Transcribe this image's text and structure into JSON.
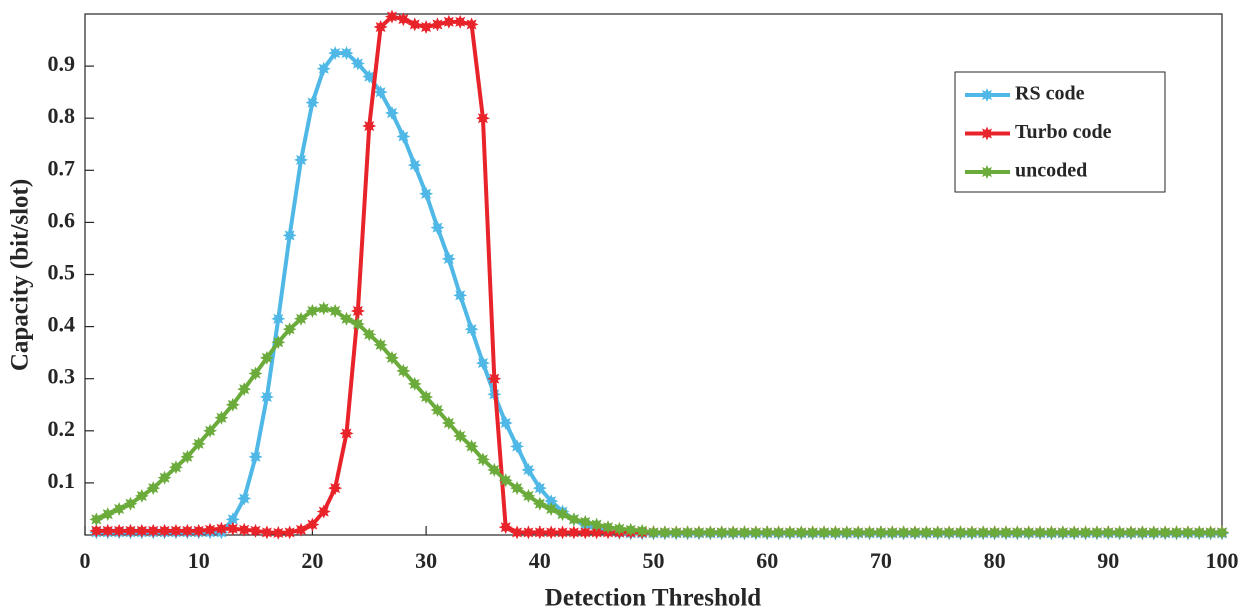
{
  "chart_data": {
    "type": "line",
    "x_label": "Detection Threshold",
    "y_label": "Capacity (bit/slot)",
    "xlim": [
      0,
      100
    ],
    "ylim": [
      0,
      1
    ],
    "xticks": [
      0,
      10,
      20,
      30,
      40,
      50,
      60,
      70,
      80,
      90,
      100
    ],
    "yticks": [
      0.1,
      0.2,
      0.3,
      0.4,
      0.5,
      0.6,
      0.7,
      0.8,
      0.9
    ],
    "grid": false,
    "legend": "upper right",
    "x": [
      1,
      2,
      3,
      4,
      5,
      6,
      7,
      8,
      9,
      10,
      11,
      12,
      13,
      14,
      15,
      16,
      17,
      18,
      19,
      20,
      21,
      22,
      23,
      24,
      25,
      26,
      27,
      28,
      29,
      30,
      31,
      32,
      33,
      34,
      35,
      36,
      37,
      38,
      39,
      40,
      41,
      42,
      43,
      44,
      45,
      46,
      47,
      48,
      49,
      50,
      51,
      52,
      53,
      54,
      55,
      56,
      57,
      58,
      59,
      60,
      61,
      62,
      63,
      64,
      65,
      66,
      67,
      68,
      69,
      70,
      71,
      72,
      73,
      74,
      75,
      76,
      77,
      78,
      79,
      80,
      81,
      82,
      83,
      84,
      85,
      86,
      87,
      88,
      89,
      90,
      91,
      92,
      93,
      94,
      95,
      96,
      97,
      98,
      99,
      100
    ],
    "series": [
      {
        "name": "RS code",
        "color": "#4fb8e6",
        "values": [
          0.005,
          0.005,
          0.005,
          0.005,
          0.005,
          0.005,
          0.005,
          0.005,
          0.005,
          0.005,
          0.005,
          0.005,
          0.03,
          0.07,
          0.15,
          0.265,
          0.415,
          0.575,
          0.72,
          0.83,
          0.895,
          0.925,
          0.925,
          0.905,
          0.88,
          0.85,
          0.81,
          0.765,
          0.71,
          0.655,
          0.59,
          0.53,
          0.46,
          0.395,
          0.33,
          0.27,
          0.215,
          0.17,
          0.125,
          0.09,
          0.065,
          0.045,
          0.03,
          0.02,
          0.012,
          0.007,
          0.004,
          0.003,
          0.003,
          0.003,
          0.003,
          0.003,
          0.003,
          0.003,
          0.003,
          0.003,
          0.003,
          0.003,
          0.003,
          0.003,
          0.003,
          0.003,
          0.003,
          0.003,
          0.003,
          0.003,
          0.003,
          0.003,
          0.003,
          0.003,
          0.003,
          0.003,
          0.003,
          0.003,
          0.003,
          0.003,
          0.003,
          0.003,
          0.003,
          0.003,
          0.003,
          0.003,
          0.003,
          0.003,
          0.003,
          0.003,
          0.003,
          0.003,
          0.003,
          0.003,
          0.003,
          0.003,
          0.003,
          0.003,
          0.003,
          0.003,
          0.003,
          0.003,
          0.003,
          0.003
        ]
      },
      {
        "name": "Turbo code",
        "color": "#e8232a",
        "values": [
          0.008,
          0.008,
          0.008,
          0.008,
          0.008,
          0.008,
          0.008,
          0.008,
          0.008,
          0.008,
          0.01,
          0.012,
          0.012,
          0.01,
          0.008,
          0.005,
          0.004,
          0.005,
          0.01,
          0.02,
          0.045,
          0.09,
          0.195,
          0.43,
          0.785,
          0.975,
          0.995,
          0.99,
          0.98,
          0.975,
          0.98,
          0.985,
          0.985,
          0.98,
          0.8,
          0.3,
          0.015,
          0.005,
          0.005,
          0.005,
          0.005,
          0.005,
          0.005,
          0.005,
          0.005,
          0.005,
          0.005,
          0.005,
          0.005,
          0.005,
          0.005,
          0.005,
          0.005,
          0.005,
          0.005,
          0.005,
          0.005,
          0.005,
          0.005,
          0.005,
          0.005,
          0.005,
          0.005,
          0.005,
          0.005,
          0.005,
          0.005,
          0.005,
          0.005,
          0.005,
          0.005,
          0.005,
          0.005,
          0.005,
          0.005,
          0.005,
          0.005,
          0.005,
          0.005,
          0.005,
          0.005,
          0.005,
          0.005,
          0.005,
          0.005,
          0.005,
          0.005,
          0.005,
          0.005,
          0.005,
          0.005,
          0.005,
          0.005,
          0.005,
          0.005,
          0.005,
          0.005,
          0.005,
          0.005,
          0.005
        ]
      },
      {
        "name": "uncoded",
        "color": "#6aab3b",
        "values": [
          0.03,
          0.04,
          0.05,
          0.06,
          0.075,
          0.09,
          0.11,
          0.13,
          0.15,
          0.175,
          0.2,
          0.225,
          0.25,
          0.28,
          0.31,
          0.34,
          0.37,
          0.395,
          0.415,
          0.43,
          0.435,
          0.43,
          0.415,
          0.405,
          0.385,
          0.365,
          0.34,
          0.315,
          0.29,
          0.265,
          0.24,
          0.215,
          0.19,
          0.17,
          0.145,
          0.125,
          0.105,
          0.09,
          0.075,
          0.06,
          0.05,
          0.04,
          0.03,
          0.025,
          0.02,
          0.015,
          0.012,
          0.01,
          0.008,
          0.005,
          0.005,
          0.005,
          0.005,
          0.005,
          0.005,
          0.005,
          0.005,
          0.005,
          0.005,
          0.005,
          0.005,
          0.005,
          0.005,
          0.005,
          0.005,
          0.005,
          0.005,
          0.005,
          0.005,
          0.005,
          0.005,
          0.005,
          0.005,
          0.005,
          0.005,
          0.005,
          0.005,
          0.005,
          0.005,
          0.005,
          0.005,
          0.005,
          0.005,
          0.005,
          0.005,
          0.005,
          0.005,
          0.005,
          0.005,
          0.005,
          0.005,
          0.005,
          0.005,
          0.005,
          0.005,
          0.005,
          0.005,
          0.005,
          0.005,
          0.005
        ]
      }
    ]
  }
}
